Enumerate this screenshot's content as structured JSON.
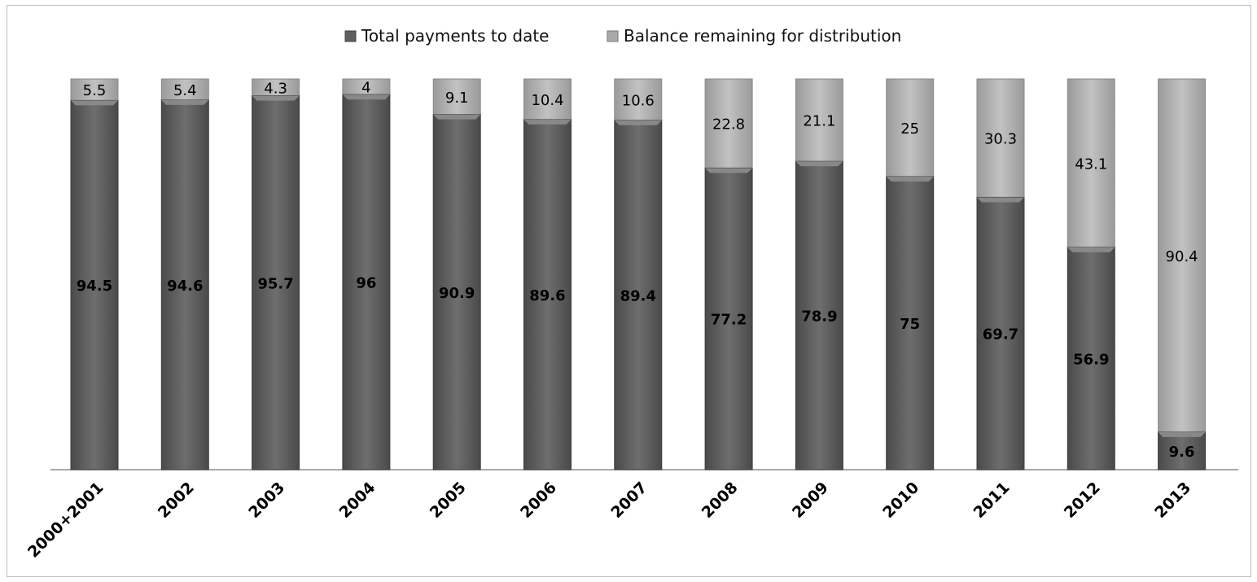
{
  "chart_data": {
    "type": "bar",
    "stacked": true,
    "categories": [
      "2000+2001",
      "2002",
      "2003",
      "2004",
      "2005",
      "2006",
      "2007",
      "2008",
      "2009",
      "2010",
      "2011",
      "2012",
      "2013"
    ],
    "series": [
      {
        "name": "Total payments to date",
        "values": [
          94.5,
          94.6,
          95.7,
          96,
          90.9,
          89.6,
          89.4,
          77.2,
          78.9,
          75,
          69.7,
          56.9,
          9.6
        ],
        "color": "#5f5f5f"
      },
      {
        "name": "Balance remaining for distribution",
        "values": [
          5.5,
          5.4,
          4.3,
          4,
          9.1,
          10.4,
          10.6,
          22.8,
          21.1,
          25,
          30.3,
          43.1,
          90.4
        ],
        "color": "#a9a9a9"
      }
    ],
    "value_labels": {
      "payments": [
        "94.5",
        "94.6",
        "95.7",
        "96",
        "90.9",
        "89.6",
        "89.4",
        "77.2",
        "78.9",
        "75",
        "69.7",
        "56.9",
        "9.6"
      ],
      "balance": [
        "5.5",
        "5.4",
        "4.3",
        "4",
        "9.1",
        "10.4",
        "10.6",
        "22.8",
        "21.1",
        "25",
        "30.3",
        "43.1",
        "90.4"
      ]
    },
    "ylim": [
      0,
      100
    ],
    "grid": false,
    "legend_position": "top",
    "xlabel": "",
    "ylabel": "",
    "title": ""
  }
}
